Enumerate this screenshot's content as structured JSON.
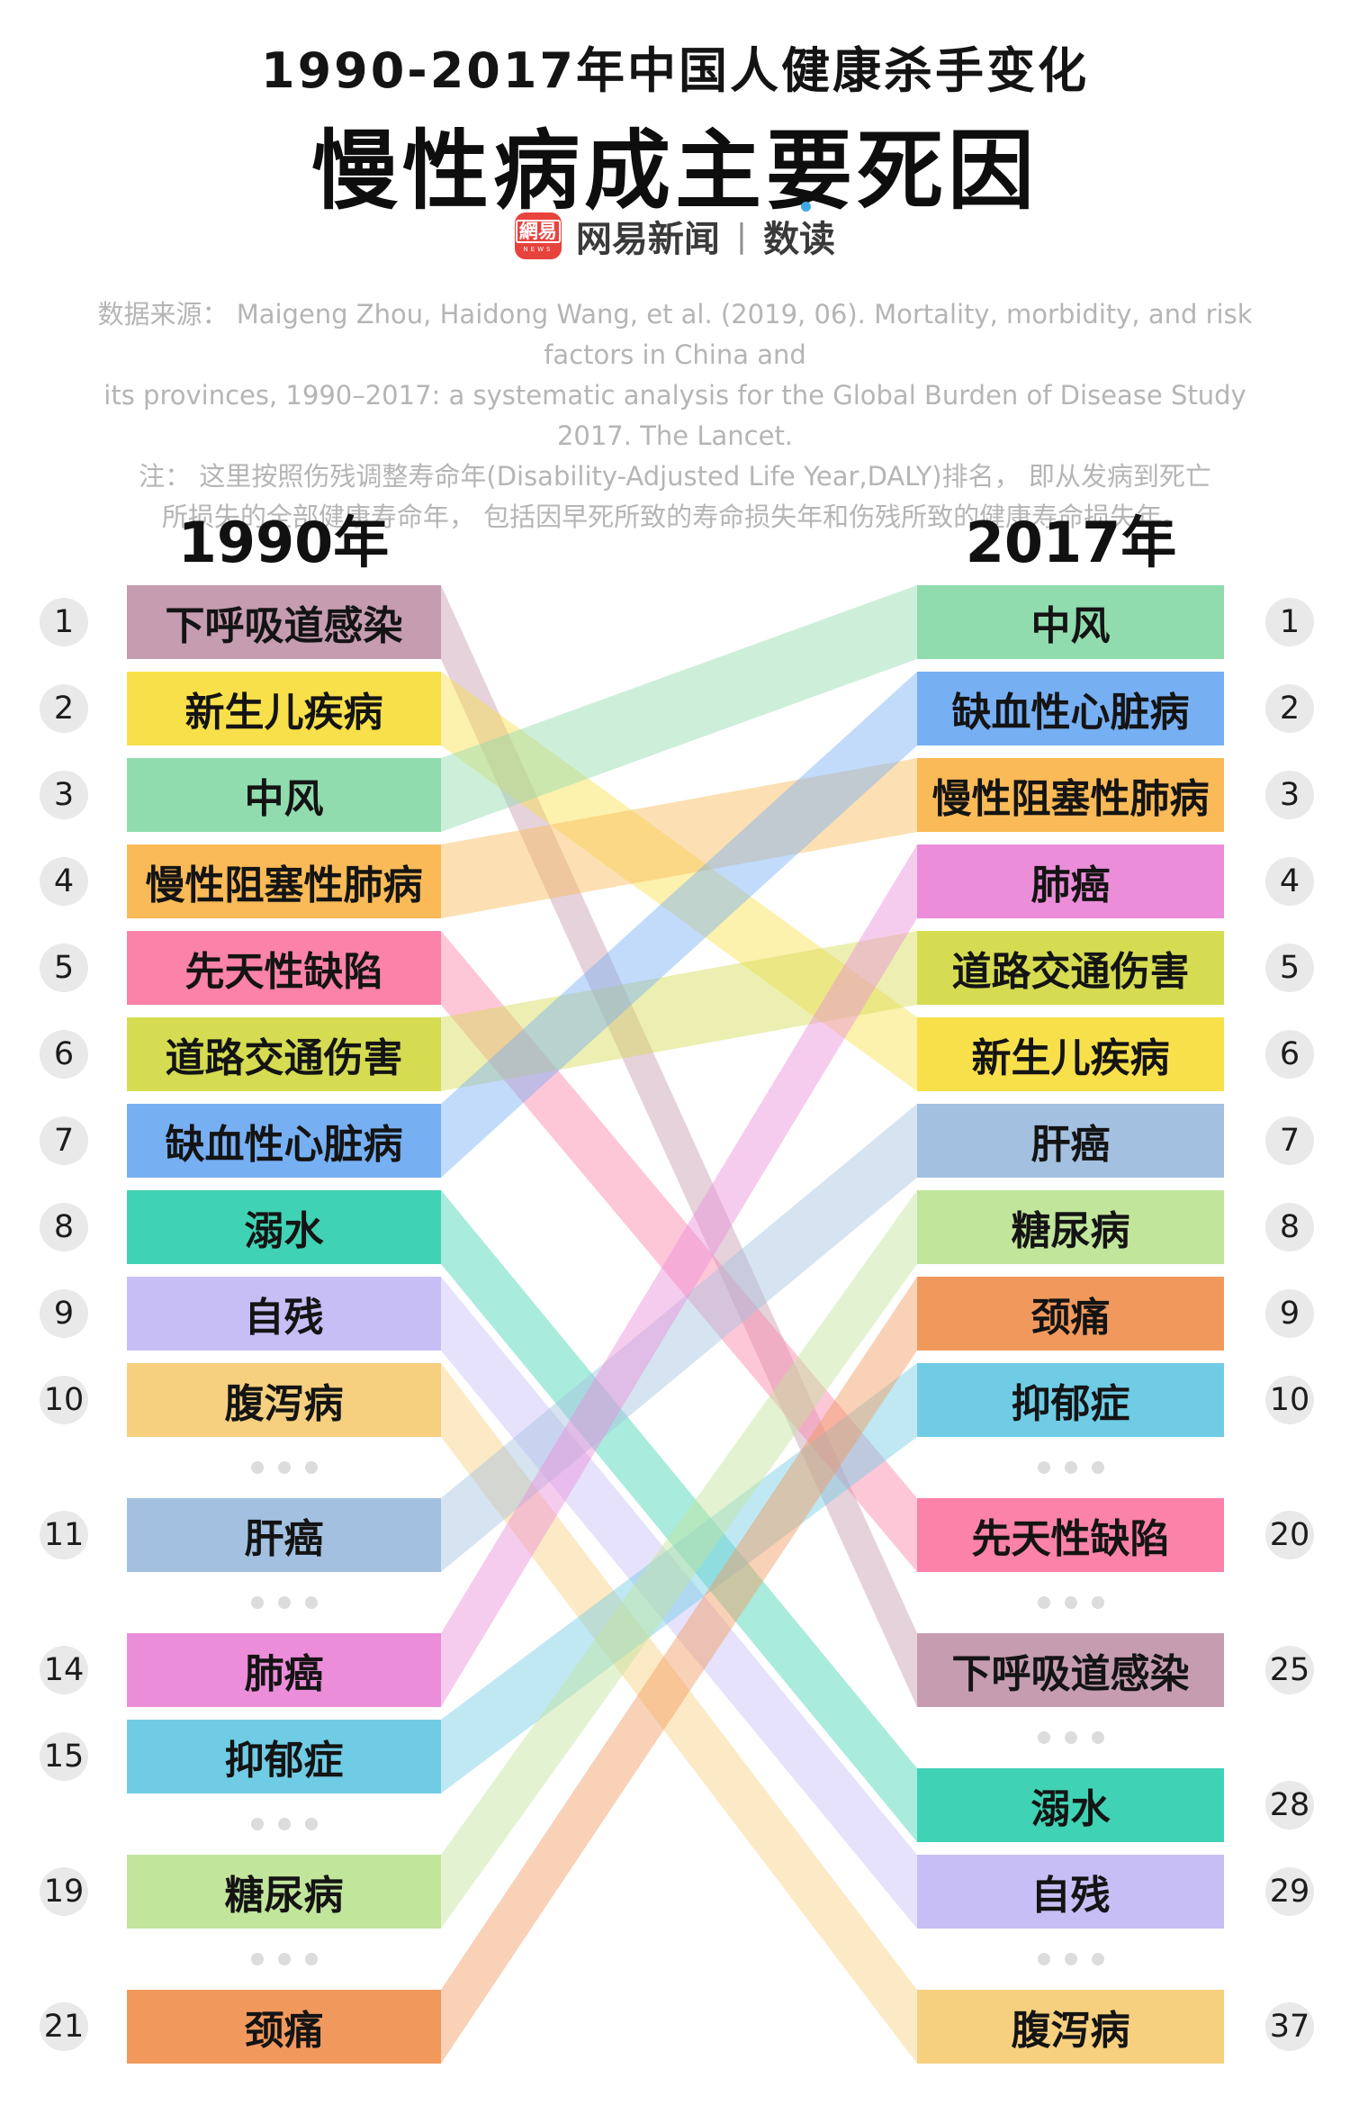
{
  "header": {
    "subtitle": "1990-2017年中国人健康杀手变化",
    "title": "慢性病成主要死因",
    "logo": {
      "icon_main": "網易",
      "icon_sub": "NEWS",
      "brand": "网易新闻",
      "divider": "|",
      "section": "数读"
    },
    "source_lines": [
      "数据来源： Maigeng Zhou, Haidong Wang, et al. (2019, 06). Mortality, morbidity, and risk factors in China and",
      "its provinces, 1990–2017: a systematic analysis for the Global Burden of Disease Study 2017. The Lancet.",
      "注： 这里按照伤残调整寿命年(Disability-Adjusted Life Year,DALY)排名， 即从发病到死亡",
      "所损失的全部健康寿命年， 包括因早死所致的寿命损失年和伤残所致的健康寿命损失年。"
    ]
  },
  "columns": {
    "left_year": "1990年",
    "right_year": "2017年"
  },
  "chart_data": {
    "type": "slope-rank",
    "band_opacity": 0.45,
    "items": [
      {
        "name": "下呼吸道感染",
        "rank_1990": 1,
        "rank_2017": 25,
        "color": "#c59cb0"
      },
      {
        "name": "新生儿疾病",
        "rank_1990": 2,
        "rank_2017": 6,
        "color": "#f8e04a"
      },
      {
        "name": "中风",
        "rank_1990": 3,
        "rank_2017": 1,
        "color": "#90dcae"
      },
      {
        "name": "慢性阻塞性肺病",
        "rank_1990": 4,
        "rank_2017": 3,
        "color": "#f9ba57"
      },
      {
        "name": "先天性缺陷",
        "rank_1990": 5,
        "rank_2017": 20,
        "color": "#fb82a8"
      },
      {
        "name": "道路交通伤害",
        "rank_1990": 6,
        "rank_2017": 5,
        "color": "#d5dc51"
      },
      {
        "name": "缺血性心脏病",
        "rank_1990": 7,
        "rank_2017": 2,
        "color": "#77aff3"
      },
      {
        "name": "溺水",
        "rank_1990": 8,
        "rank_2017": 28,
        "color": "#40d2b4"
      },
      {
        "name": "自残",
        "rank_1990": 9,
        "rank_2017": 29,
        "color": "#c8bef6"
      },
      {
        "name": "腹泻病",
        "rank_1990": 10,
        "rank_2017": 37,
        "color": "#f6d07f"
      },
      {
        "name": "肝癌",
        "rank_1990": 11,
        "rank_2017": 7,
        "color": "#a3c0e0"
      },
      {
        "name": "肺癌",
        "rank_1990": 14,
        "rank_2017": 4,
        "color": "#eb8dd9"
      },
      {
        "name": "抑郁症",
        "rank_1990": 15,
        "rank_2017": 10,
        "color": "#70cce5"
      },
      {
        "name": "糖尿病",
        "rank_1990": 19,
        "rank_2017": 8,
        "color": "#c2e59c"
      },
      {
        "name": "颈痛",
        "rank_1990": 21,
        "rank_2017": 9,
        "color": "#f1995d"
      }
    ],
    "left_slots": [
      "1",
      "2",
      "3",
      "4",
      "5",
      "6",
      "7",
      "8",
      "9",
      "10",
      "dots",
      "11",
      "dots",
      "14",
      "15",
      "dots",
      "19",
      "dots",
      "21"
    ],
    "right_slots": [
      "1",
      "2",
      "3",
      "4",
      "5",
      "6",
      "7",
      "8",
      "9",
      "10",
      "dots",
      "20",
      "dots",
      "25",
      "dots",
      "28",
      "29",
      "dots",
      "37"
    ]
  }
}
